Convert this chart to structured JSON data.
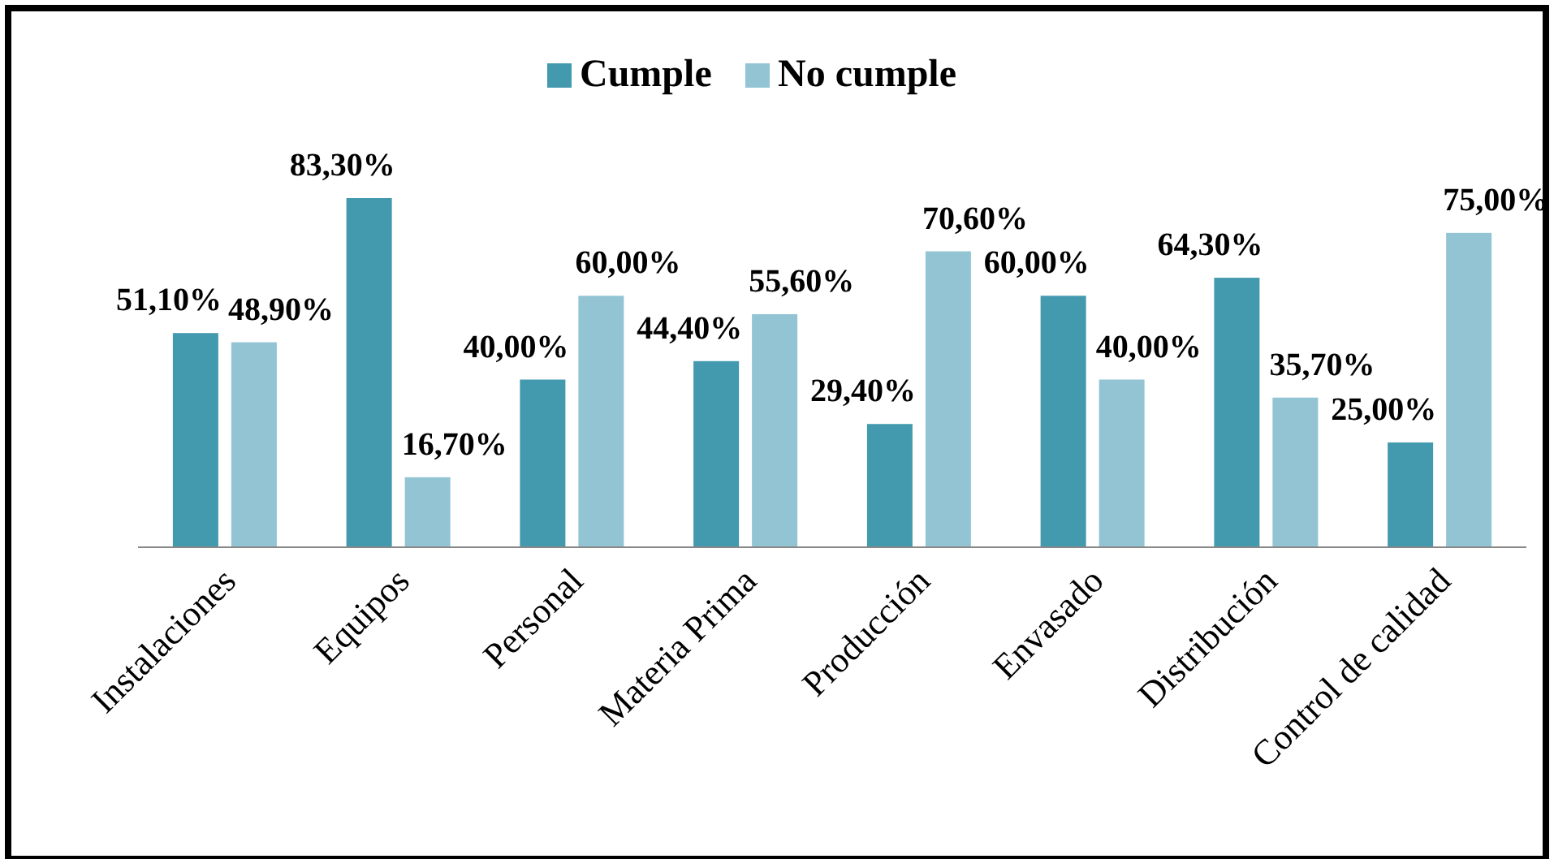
{
  "chart_data": {
    "type": "bar",
    "categories": [
      "Instalaciones",
      "Equipos",
      "Personal",
      "Materia Prima",
      "Producción",
      "Envasado",
      "Distribución",
      "Control de calidad"
    ],
    "series": [
      {
        "name": "Cumple",
        "color": "#4399ae",
        "values": [
          51.1,
          83.3,
          40.0,
          44.4,
          29.4,
          60.0,
          64.3,
          25.0
        ],
        "value_labels": [
          "51,10%",
          "83,30%",
          "40,00%",
          "44,40%",
          "29,40%",
          "60,00%",
          "64,30%",
          "25,00%"
        ]
      },
      {
        "name": "No cumple",
        "color": "#92c4d4",
        "values": [
          48.9,
          16.7,
          60.0,
          55.6,
          70.6,
          40.0,
          35.7,
          75.0
        ],
        "value_labels": [
          "48,90%",
          "16,70%",
          "60,00%",
          "55,60%",
          "70,60%",
          "40,00%",
          "35,70%",
          "75,00%"
        ]
      }
    ],
    "legend": "top",
    "tick_labels": "x"
  }
}
